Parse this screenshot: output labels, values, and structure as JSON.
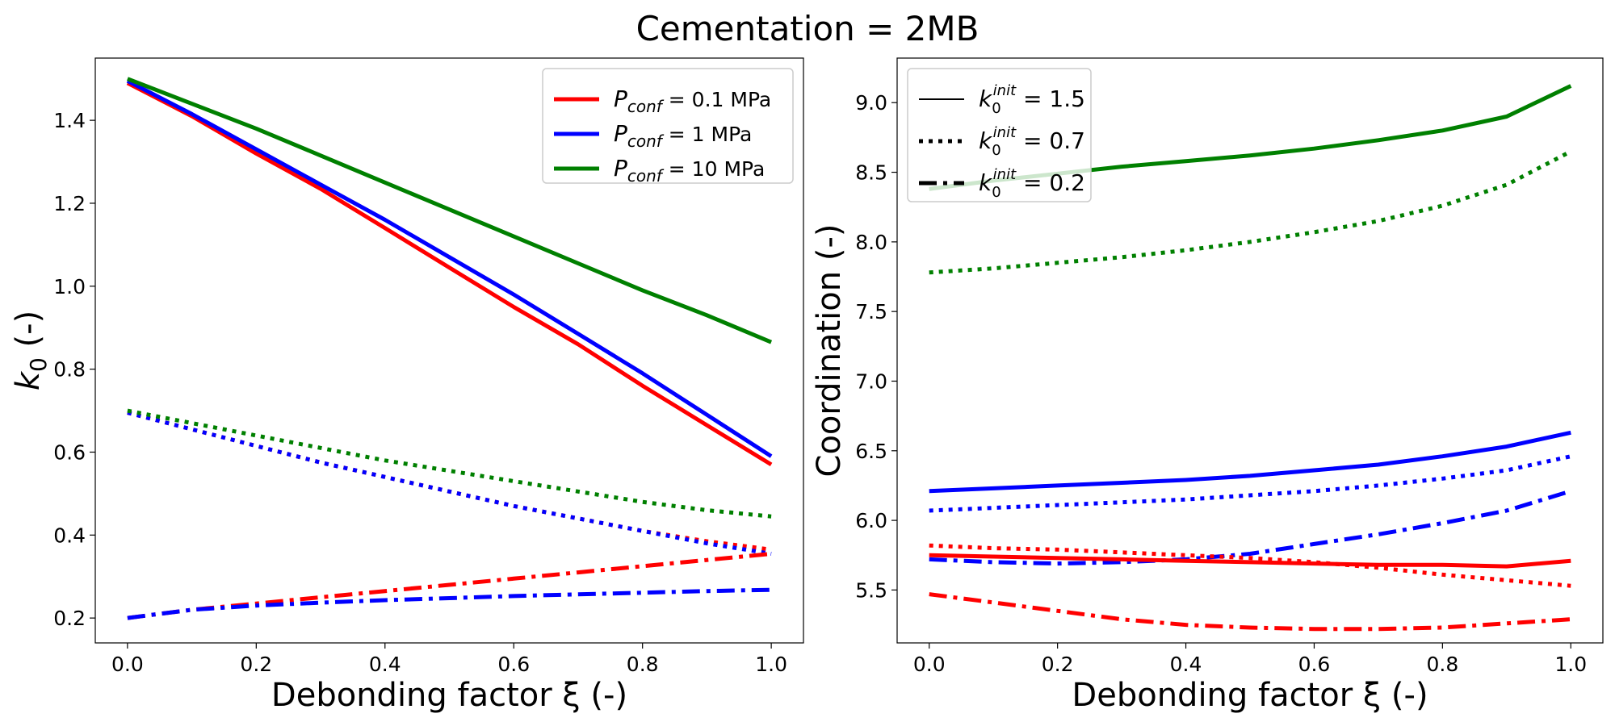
{
  "figure": {
    "title": "Cementation = 2MB"
  },
  "colors": {
    "red": "#ff0000",
    "blue": "#0000ff",
    "green": "#008000",
    "black": "#000000"
  },
  "chart_data": [
    {
      "type": "line",
      "xlabel": "Debonding factor ξ (-)",
      "ylabel_main": "k",
      "ylabel_sub": "0",
      "ylabel_suffix": " (-)",
      "xlim": [
        -0.05,
        1.05
      ],
      "ylim": [
        0.14,
        1.55
      ],
      "xticks": [
        "0.0",
        "0.2",
        "0.4",
        "0.6",
        "0.8",
        "1.0"
      ],
      "yticks": [
        "0.2",
        "0.4",
        "0.6",
        "0.8",
        "1.0",
        "1.2",
        "1.4"
      ],
      "legend": {
        "position": "top-right",
        "entries": [
          {
            "sym": "P",
            "sub": "conf",
            "text": " = 0.1 MPa",
            "color": "#ff0000"
          },
          {
            "sym": "P",
            "sub": "conf",
            "text": " = 1 MPa",
            "color": "#0000ff"
          },
          {
            "sym": "P",
            "sub": "conf",
            "text": " = 10 MPa",
            "color": "#008000"
          }
        ]
      },
      "series": [
        {
          "name": "0.1 MPa, k0init=1.5",
          "color": "#ff0000",
          "style": "solid",
          "x": [
            0,
            0.1,
            0.2,
            0.3,
            0.4,
            0.5,
            0.6,
            0.7,
            0.8,
            0.9,
            1.0
          ],
          "y": [
            1.49,
            1.41,
            1.32,
            1.235,
            1.14,
            1.045,
            0.95,
            0.86,
            0.76,
            0.665,
            0.57
          ]
        },
        {
          "name": "1 MPa, k0init=1.5",
          "color": "#0000ff",
          "style": "solid",
          "x": [
            0,
            0.1,
            0.2,
            0.3,
            0.4,
            0.5,
            0.6,
            0.7,
            0.8,
            0.9,
            1.0
          ],
          "y": [
            1.495,
            1.415,
            1.33,
            1.245,
            1.16,
            1.07,
            0.98,
            0.885,
            0.79,
            0.69,
            0.59
          ]
        },
        {
          "name": "10 MPa, k0init=1.5",
          "color": "#008000",
          "style": "solid",
          "x": [
            0,
            0.1,
            0.2,
            0.3,
            0.4,
            0.5,
            0.6,
            0.7,
            0.8,
            0.9,
            1.0
          ],
          "y": [
            1.5,
            1.44,
            1.38,
            1.315,
            1.25,
            1.185,
            1.12,
            1.055,
            0.99,
            0.93,
            0.865
          ]
        },
        {
          "name": "0.1 MPa, k0init=0.7",
          "color": "#ff0000",
          "style": "dotted",
          "x": [
            0,
            0.1,
            0.2,
            0.3,
            0.4,
            0.5,
            0.6,
            0.7,
            0.8,
            0.9,
            1.0
          ],
          "y": [
            0.695,
            0.655,
            0.615,
            0.575,
            0.54,
            0.505,
            0.47,
            0.44,
            0.41,
            0.385,
            0.365
          ]
        },
        {
          "name": "1 MPa, k0init=0.7",
          "color": "#0000ff",
          "style": "dotted",
          "x": [
            0,
            0.1,
            0.2,
            0.3,
            0.4,
            0.5,
            0.6,
            0.7,
            0.8,
            0.9,
            1.0
          ],
          "y": [
            0.695,
            0.655,
            0.615,
            0.575,
            0.54,
            0.505,
            0.47,
            0.44,
            0.41,
            0.38,
            0.355
          ]
        },
        {
          "name": "10 MPa, k0init=0.7",
          "color": "#008000",
          "style": "dotted",
          "x": [
            0,
            0.1,
            0.2,
            0.3,
            0.4,
            0.5,
            0.6,
            0.7,
            0.8,
            0.9,
            1.0
          ],
          "y": [
            0.7,
            0.67,
            0.64,
            0.61,
            0.58,
            0.555,
            0.53,
            0.505,
            0.48,
            0.46,
            0.445
          ]
        },
        {
          "name": "0.1 MPa, k0init=0.2",
          "color": "#ff0000",
          "style": "dashdot",
          "x": [
            0,
            0.1,
            0.2,
            0.3,
            0.4,
            0.5,
            0.6,
            0.7,
            0.8,
            0.9,
            1.0
          ],
          "y": [
            0.2,
            0.22,
            0.235,
            0.25,
            0.265,
            0.28,
            0.295,
            0.31,
            0.325,
            0.34,
            0.355
          ]
        },
        {
          "name": "1 MPa, k0init=0.2",
          "color": "#0000ff",
          "style": "dashdot",
          "x": [
            0,
            0.1,
            0.2,
            0.3,
            0.4,
            0.5,
            0.6,
            0.7,
            0.8,
            0.9,
            1.0
          ],
          "y": [
            0.2,
            0.22,
            0.23,
            0.237,
            0.243,
            0.248,
            0.253,
            0.257,
            0.261,
            0.265,
            0.268
          ]
        }
      ]
    },
    {
      "type": "line",
      "xlabel": "Debonding factor ξ (-)",
      "ylabel": "Coordination (-)",
      "xlim": [
        -0.05,
        1.05
      ],
      "ylim": [
        5.12,
        9.32
      ],
      "xticks": [
        "0.0",
        "0.2",
        "0.4",
        "0.6",
        "0.8",
        "1.0"
      ],
      "yticks": [
        "5.5",
        "6.0",
        "6.5",
        "7.0",
        "7.5",
        "8.0",
        "8.5",
        "9.0"
      ],
      "legend": {
        "position": "top-left",
        "entries": [
          {
            "sym": "k",
            "sub": "0",
            "sup": "init",
            "text": " = 1.5",
            "style": "solid",
            "color": "#000000"
          },
          {
            "sym": "k",
            "sub": "0",
            "sup": "init",
            "text": " = 0.7",
            "style": "dotted",
            "color": "#000000"
          },
          {
            "sym": "k",
            "sub": "0",
            "sup": "init",
            "text": " = 0.2",
            "style": "dashdot",
            "color": "#000000"
          }
        ]
      },
      "series": [
        {
          "name": "10 MPa, k0init=1.5",
          "color": "#008000",
          "style": "solid",
          "x": [
            0,
            0.1,
            0.2,
            0.3,
            0.4,
            0.5,
            0.6,
            0.7,
            0.8,
            0.9,
            1.0
          ],
          "y": [
            8.38,
            8.44,
            8.49,
            8.54,
            8.58,
            8.62,
            8.67,
            8.73,
            8.8,
            8.9,
            9.12
          ]
        },
        {
          "name": "10 MPa, k0init=0.7",
          "color": "#008000",
          "style": "dotted",
          "x": [
            0,
            0.1,
            0.2,
            0.3,
            0.4,
            0.5,
            0.6,
            0.7,
            0.8,
            0.9,
            1.0
          ],
          "y": [
            7.78,
            7.81,
            7.85,
            7.89,
            7.94,
            8.0,
            8.07,
            8.15,
            8.26,
            8.41,
            8.65
          ]
        },
        {
          "name": "1 MPa, k0init=1.5",
          "color": "#0000ff",
          "style": "solid",
          "x": [
            0,
            0.1,
            0.2,
            0.3,
            0.4,
            0.5,
            0.6,
            0.7,
            0.8,
            0.9,
            1.0
          ],
          "y": [
            6.21,
            6.23,
            6.25,
            6.27,
            6.29,
            6.32,
            6.36,
            6.4,
            6.46,
            6.53,
            6.63
          ]
        },
        {
          "name": "1 MPa, k0init=0.7",
          "color": "#0000ff",
          "style": "dotted",
          "x": [
            0,
            0.1,
            0.2,
            0.3,
            0.4,
            0.5,
            0.6,
            0.7,
            0.8,
            0.9,
            1.0
          ],
          "y": [
            6.07,
            6.09,
            6.11,
            6.13,
            6.15,
            6.18,
            6.21,
            6.25,
            6.3,
            6.36,
            6.46
          ]
        },
        {
          "name": "1 MPa, k0init=0.2",
          "color": "#0000ff",
          "style": "dashdot",
          "x": [
            0,
            0.1,
            0.2,
            0.3,
            0.4,
            0.5,
            0.6,
            0.7,
            0.8,
            0.9,
            1.0
          ],
          "y": [
            5.72,
            5.7,
            5.69,
            5.7,
            5.72,
            5.76,
            5.83,
            5.9,
            5.98,
            6.07,
            6.21
          ]
        },
        {
          "name": "0.1 MPa, k0init=0.7",
          "color": "#ff0000",
          "style": "dotted",
          "x": [
            0,
            0.1,
            0.2,
            0.3,
            0.4,
            0.5,
            0.6,
            0.7,
            0.8,
            0.9,
            1.0
          ],
          "y": [
            5.82,
            5.8,
            5.79,
            5.77,
            5.75,
            5.73,
            5.7,
            5.66,
            5.61,
            5.57,
            5.53
          ]
        },
        {
          "name": "0.1 MPa, k0init=1.5",
          "color": "#ff0000",
          "style": "solid",
          "x": [
            0,
            0.1,
            0.2,
            0.3,
            0.4,
            0.5,
            0.6,
            0.7,
            0.8,
            0.9,
            1.0
          ],
          "y": [
            5.75,
            5.74,
            5.73,
            5.72,
            5.71,
            5.7,
            5.69,
            5.68,
            5.68,
            5.67,
            5.71
          ]
        },
        {
          "name": "0.1 MPa, k0init=0.2",
          "color": "#ff0000",
          "style": "dashdot",
          "x": [
            0,
            0.1,
            0.2,
            0.3,
            0.4,
            0.5,
            0.6,
            0.7,
            0.8,
            0.9,
            1.0
          ],
          "y": [
            5.47,
            5.41,
            5.35,
            5.29,
            5.25,
            5.23,
            5.22,
            5.22,
            5.23,
            5.26,
            5.29
          ]
        }
      ]
    }
  ]
}
